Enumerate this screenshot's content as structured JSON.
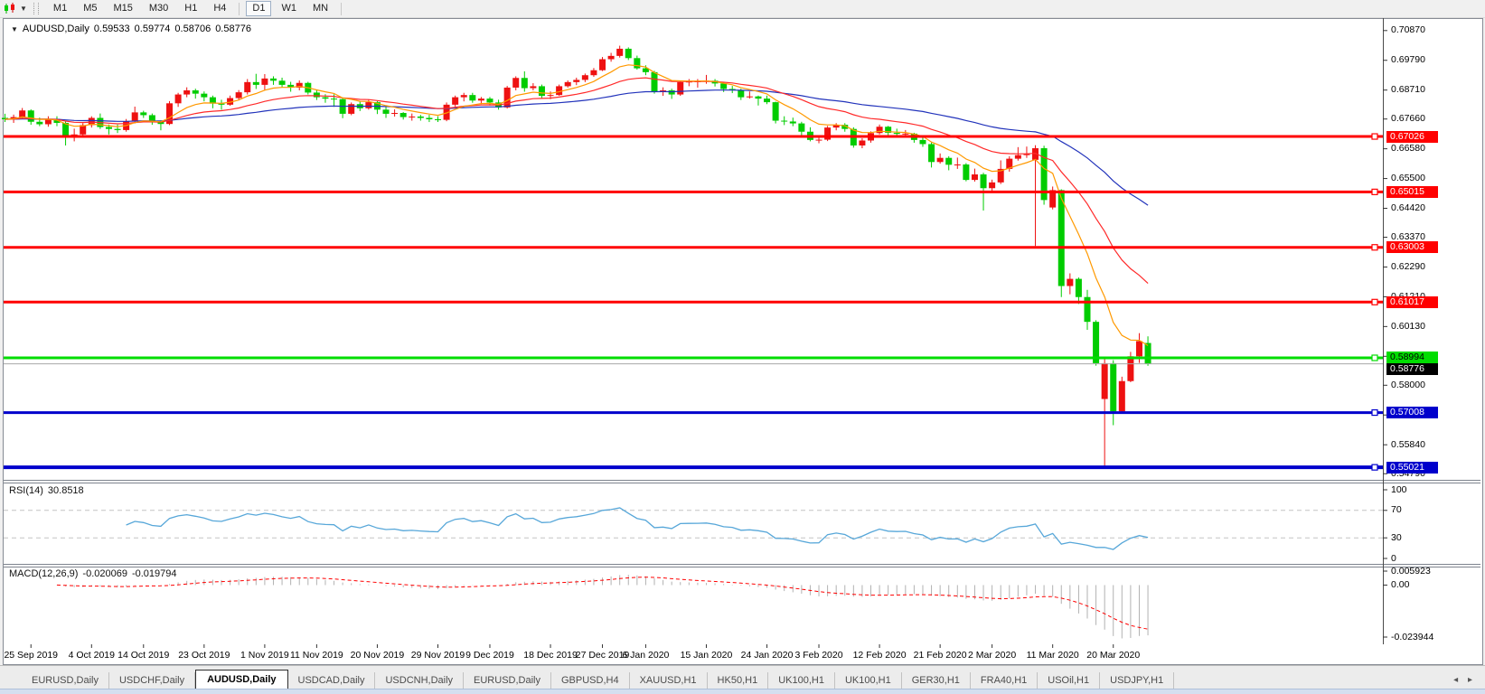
{
  "toolbar": {
    "timeframes": [
      "M1",
      "M5",
      "M15",
      "M30",
      "H1",
      "H4",
      "D1",
      "W1",
      "MN"
    ],
    "active_timeframe": "D1"
  },
  "chart_title": {
    "symbol": "AUDUSD,Daily",
    "open": "0.59533",
    "high": "0.59774",
    "low": "0.58706",
    "close": "0.58776"
  },
  "chart_data": {
    "type": "candlestick",
    "symbol": "AUDUSD",
    "timeframe": "Daily",
    "colors": {
      "bull": "#ee1111",
      "bear": "#00cc00",
      "background": "#ffffff"
    },
    "price_range": {
      "max": 0.7129,
      "min": 0.546
    },
    "price_ticks": [
      0.7087,
      0.6979,
      0.6871,
      0.6766,
      0.6658,
      0.655,
      0.6442,
      0.6337,
      0.6229,
      0.6121,
      0.6013,
      0.5905,
      0.58,
      0.5692,
      0.5584,
      0.5479
    ],
    "horizontal_lines": [
      {
        "value": 0.67026,
        "label": "0.67026",
        "color": "#ff0000",
        "text_color": "#ffffff",
        "weight": 3
      },
      {
        "value": 0.65015,
        "label": "0.65015",
        "color": "#ff0000",
        "text_color": "#ffffff",
        "weight": 3
      },
      {
        "value": 0.63003,
        "label": "0.63003",
        "color": "#ff0000",
        "text_color": "#ffffff",
        "weight": 3
      },
      {
        "value": 0.61017,
        "label": "0.61017",
        "color": "#ff0000",
        "text_color": "#ffffff",
        "weight": 3
      },
      {
        "value": 0.58994,
        "label": "0.58994",
        "color": "#00dd00",
        "text_color": "#000000",
        "weight": 3
      },
      {
        "value": 0.57008,
        "label": "0.57008",
        "color": "#0000cc",
        "text_color": "#ffffff",
        "weight": 3
      },
      {
        "value": 0.55021,
        "label": "0.55021",
        "color": "#0000cc",
        "text_color": "#ffffff",
        "weight": 4
      }
    ],
    "current_price": {
      "value": 0.58776,
      "label": "0.58776",
      "line_color": "#a8a8a8",
      "badge_color": "#000000",
      "text_color": "#ffffff"
    },
    "moving_averages": {
      "fast": {
        "period": 8,
        "color": "#ff9900"
      },
      "medium": {
        "period": 21,
        "color": "#ff2a2a"
      },
      "slow": {
        "period": 55,
        "color": "#2233bb"
      }
    },
    "date_labels": [
      {
        "label": "25 Sep 2019",
        "i": 3
      },
      {
        "label": "4 Oct 2019",
        "i": 10
      },
      {
        "label": "14 Oct 2019",
        "i": 16
      },
      {
        "label": "23 Oct 2019",
        "i": 23
      },
      {
        "label": "1 Nov 2019",
        "i": 30
      },
      {
        "label": "11 Nov 2019",
        "i": 36
      },
      {
        "label": "20 Nov 2019",
        "i": 43
      },
      {
        "label": "29 Nov 2019",
        "i": 50
      },
      {
        "label": "9 Dec 2019",
        "i": 56
      },
      {
        "label": "18 Dec 2019",
        "i": 63
      },
      {
        "label": "27 Dec 2019",
        "i": 69
      },
      {
        "label": "6 Jan 2020",
        "i": 74
      },
      {
        "label": "15 Jan 2020",
        "i": 81
      },
      {
        "label": "24 Jan 2020",
        "i": 88
      },
      {
        "label": "3 Feb 2020",
        "i": 94
      },
      {
        "label": "12 Feb 2020",
        "i": 101
      },
      {
        "label": "21 Feb 2020",
        "i": 108
      },
      {
        "label": "2 Mar 2020",
        "i": 114
      },
      {
        "label": "11 Mar 2020",
        "i": 121
      },
      {
        "label": "20 Mar 2020",
        "i": 128
      }
    ],
    "candles": [
      [
        0.677,
        0.6785,
        0.6755,
        0.6765
      ],
      [
        0.6765,
        0.6782,
        0.6752,
        0.6773
      ],
      [
        0.6773,
        0.6806,
        0.6768,
        0.6797
      ],
      [
        0.6797,
        0.6801,
        0.6745,
        0.6756
      ],
      [
        0.6756,
        0.6771,
        0.674,
        0.6747
      ],
      [
        0.6747,
        0.6776,
        0.6738,
        0.6766
      ],
      [
        0.6766,
        0.6776,
        0.674,
        0.6752
      ],
      [
        0.6752,
        0.6757,
        0.667,
        0.6701
      ],
      [
        0.6701,
        0.6731,
        0.6685,
        0.671
      ],
      [
        0.671,
        0.6751,
        0.67,
        0.6744
      ],
      [
        0.6744,
        0.6776,
        0.6735,
        0.677
      ],
      [
        0.677,
        0.6786,
        0.673,
        0.6737
      ],
      [
        0.6737,
        0.6746,
        0.671,
        0.673
      ],
      [
        0.673,
        0.6746,
        0.6715,
        0.6726
      ],
      [
        0.6726,
        0.6766,
        0.672,
        0.6757
      ],
      [
        0.6757,
        0.6811,
        0.675,
        0.679
      ],
      [
        0.679,
        0.6796,
        0.677,
        0.678
      ],
      [
        0.678,
        0.6786,
        0.6745,
        0.6755
      ],
      [
        0.6755,
        0.6761,
        0.6725,
        0.6748
      ],
      [
        0.6748,
        0.6831,
        0.6744,
        0.6823
      ],
      [
        0.6823,
        0.6861,
        0.681,
        0.6855
      ],
      [
        0.6855,
        0.6881,
        0.6845,
        0.687
      ],
      [
        0.687,
        0.6876,
        0.684,
        0.6858
      ],
      [
        0.6858,
        0.6866,
        0.683,
        0.6845
      ],
      [
        0.6845,
        0.6851,
        0.6805,
        0.6822
      ],
      [
        0.6822,
        0.6836,
        0.68,
        0.6818
      ],
      [
        0.6818,
        0.6851,
        0.6814,
        0.6842
      ],
      [
        0.6842,
        0.6871,
        0.6835,
        0.6863
      ],
      [
        0.6863,
        0.6911,
        0.6855,
        0.69
      ],
      [
        0.69,
        0.693,
        0.6875,
        0.689
      ],
      [
        0.689,
        0.6929,
        0.687,
        0.6913
      ],
      [
        0.6913,
        0.6921,
        0.689,
        0.6905
      ],
      [
        0.6905,
        0.6916,
        0.688,
        0.689
      ],
      [
        0.689,
        0.6901,
        0.6865,
        0.688
      ],
      [
        0.688,
        0.6906,
        0.687,
        0.6897
      ],
      [
        0.6897,
        0.6901,
        0.6855,
        0.6862
      ],
      [
        0.6862,
        0.6871,
        0.6835,
        0.6845
      ],
      [
        0.6845,
        0.6856,
        0.6825,
        0.684
      ],
      [
        0.684,
        0.6856,
        0.681,
        0.6838
      ],
      [
        0.6838,
        0.6841,
        0.6769,
        0.6785
      ],
      [
        0.6785,
        0.6826,
        0.678,
        0.682
      ],
      [
        0.682,
        0.6831,
        0.6795,
        0.6805
      ],
      [
        0.6805,
        0.6836,
        0.68,
        0.6827
      ],
      [
        0.6827,
        0.6831,
        0.6784,
        0.68
      ],
      [
        0.68,
        0.6811,
        0.677,
        0.6785
      ],
      [
        0.6785,
        0.6801,
        0.6775,
        0.6788
      ],
      [
        0.6788,
        0.6791,
        0.6764,
        0.6773
      ],
      [
        0.6773,
        0.6786,
        0.676,
        0.6775
      ],
      [
        0.6775,
        0.6781,
        0.676,
        0.677
      ],
      [
        0.677,
        0.6781,
        0.6755,
        0.6765
      ],
      [
        0.6765,
        0.6776,
        0.6755,
        0.6763
      ],
      [
        0.6763,
        0.6826,
        0.6758,
        0.6818
      ],
      [
        0.6818,
        0.6851,
        0.681,
        0.6845
      ],
      [
        0.6845,
        0.6861,
        0.683,
        0.6853
      ],
      [
        0.6853,
        0.6861,
        0.6825,
        0.6833
      ],
      [
        0.6833,
        0.6846,
        0.682,
        0.684
      ],
      [
        0.684,
        0.6846,
        0.6815,
        0.6826
      ],
      [
        0.6826,
        0.6836,
        0.68,
        0.6808
      ],
      [
        0.6808,
        0.6886,
        0.6804,
        0.688
      ],
      [
        0.688,
        0.6921,
        0.687,
        0.6915
      ],
      [
        0.6915,
        0.6939,
        0.6865,
        0.6878
      ],
      [
        0.6878,
        0.6896,
        0.687,
        0.6885
      ],
      [
        0.6885,
        0.6891,
        0.684,
        0.685
      ],
      [
        0.685,
        0.6866,
        0.6838,
        0.6853
      ],
      [
        0.6853,
        0.6891,
        0.685,
        0.6885
      ],
      [
        0.6885,
        0.6906,
        0.688,
        0.69
      ],
      [
        0.69,
        0.6916,
        0.6889,
        0.6908
      ],
      [
        0.6908,
        0.6931,
        0.69,
        0.6925
      ],
      [
        0.6925,
        0.6951,
        0.6919,
        0.6943
      ],
      [
        0.6943,
        0.6991,
        0.694,
        0.6983
      ],
      [
        0.6983,
        0.7006,
        0.6974,
        0.6995
      ],
      [
        0.6995,
        0.7032,
        0.6989,
        0.7021
      ],
      [
        0.7021,
        0.7026,
        0.698,
        0.6987
      ],
      [
        0.6987,
        0.6996,
        0.6945,
        0.695
      ],
      [
        0.695,
        0.6961,
        0.6925,
        0.6936
      ],
      [
        0.6936,
        0.6941,
        0.6858,
        0.6865
      ],
      [
        0.6865,
        0.6881,
        0.685,
        0.687
      ],
      [
        0.687,
        0.6876,
        0.6839,
        0.6855
      ],
      [
        0.6855,
        0.6906,
        0.685,
        0.69
      ],
      [
        0.69,
        0.6911,
        0.6885,
        0.6902
      ],
      [
        0.6902,
        0.6911,
        0.688,
        0.6903
      ],
      [
        0.6903,
        0.6926,
        0.6894,
        0.6905
      ],
      [
        0.6905,
        0.6911,
        0.6884,
        0.6895
      ],
      [
        0.6895,
        0.6901,
        0.6864,
        0.6875
      ],
      [
        0.6875,
        0.6886,
        0.686,
        0.687
      ],
      [
        0.687,
        0.6876,
        0.6835,
        0.6845
      ],
      [
        0.6845,
        0.6866,
        0.684,
        0.6848
      ],
      [
        0.6848,
        0.6851,
        0.6815,
        0.684
      ],
      [
        0.684,
        0.6851,
        0.682,
        0.6827
      ],
      [
        0.6827,
        0.6829,
        0.675,
        0.676
      ],
      [
        0.676,
        0.6776,
        0.6744,
        0.6757
      ],
      [
        0.6757,
        0.6771,
        0.674,
        0.675
      ],
      [
        0.675,
        0.6756,
        0.67,
        0.672
      ],
      [
        0.672,
        0.6736,
        0.6685,
        0.669
      ],
      [
        0.669,
        0.6706,
        0.6678,
        0.6691
      ],
      [
        0.6691,
        0.6741,
        0.6686,
        0.6735
      ],
      [
        0.6735,
        0.6751,
        0.6725,
        0.6745
      ],
      [
        0.6745,
        0.6751,
        0.672,
        0.673
      ],
      [
        0.673,
        0.6736,
        0.6662,
        0.667
      ],
      [
        0.667,
        0.6696,
        0.666,
        0.6688
      ],
      [
        0.6688,
        0.6721,
        0.668,
        0.6715
      ],
      [
        0.6715,
        0.6746,
        0.671,
        0.6738
      ],
      [
        0.6738,
        0.6741,
        0.6705,
        0.6716
      ],
      [
        0.6716,
        0.6731,
        0.67,
        0.6712
      ],
      [
        0.6712,
        0.6726,
        0.67,
        0.6713
      ],
      [
        0.6713,
        0.6716,
        0.668,
        0.669
      ],
      [
        0.669,
        0.6701,
        0.6665,
        0.6675
      ],
      [
        0.6675,
        0.6681,
        0.659,
        0.661
      ],
      [
        0.661,
        0.6641,
        0.6604,
        0.6625
      ],
      [
        0.6625,
        0.6631,
        0.658,
        0.66
      ],
      [
        0.66,
        0.6626,
        0.6585,
        0.6601
      ],
      [
        0.6601,
        0.6606,
        0.654,
        0.6545
      ],
      [
        0.6545,
        0.6586,
        0.6539,
        0.6565
      ],
      [
        0.6565,
        0.6571,
        0.6434,
        0.6515
      ],
      [
        0.6515,
        0.6546,
        0.6505,
        0.6536
      ],
      [
        0.6536,
        0.6616,
        0.653,
        0.6585
      ],
      [
        0.6585,
        0.6631,
        0.6575,
        0.6622
      ],
      [
        0.6622,
        0.6664,
        0.6615,
        0.6635
      ],
      [
        0.6635,
        0.6666,
        0.6625,
        0.664
      ],
      [
        0.6618,
        0.6671,
        0.6305,
        0.666
      ],
      [
        0.666,
        0.6669,
        0.6455,
        0.6472
      ],
      [
        0.6445,
        0.6521,
        0.6438,
        0.6508
      ],
      [
        0.6508,
        0.6511,
        0.612,
        0.616
      ],
      [
        0.616,
        0.6206,
        0.613,
        0.6186
      ],
      [
        0.6186,
        0.6191,
        0.6095,
        0.612
      ],
      [
        0.612,
        0.6146,
        0.6001,
        0.603
      ],
      [
        0.603,
        0.6036,
        0.5871,
        0.588
      ],
      [
        0.575,
        0.5901,
        0.5506,
        0.588
      ],
      [
        0.588,
        0.5891,
        0.5655,
        0.5705
      ],
      [
        0.5705,
        0.5831,
        0.5701,
        0.5815
      ],
      [
        0.5815,
        0.5921,
        0.5811,
        0.5905
      ],
      [
        0.5905,
        0.5989,
        0.5881,
        0.596
      ],
      [
        0.59533,
        0.59774,
        0.58706,
        0.58776
      ]
    ]
  },
  "rsi": {
    "label": "RSI(14)",
    "value": "30.8518",
    "period": 14,
    "axis_labels": [
      "100",
      "70",
      "30",
      "0"
    ],
    "levels": {
      "upper": 70,
      "lower": 30
    },
    "line_color": "#57a7d9",
    "level_color": "#c4c4c4"
  },
  "macd": {
    "label": "MACD(12,26,9)",
    "macd_value": "-0.020069",
    "signal_value": "-0.019794",
    "params": {
      "fast": 12,
      "slow": 26,
      "signal": 9
    },
    "axis_labels": [
      "0.005923",
      "0.00",
      "-0.023944"
    ],
    "axis_max": 0.005923,
    "axis_min": -0.023944,
    "histogram_color": "#b2b2b2",
    "signal_color": "#ff0000"
  },
  "tabs": {
    "items": [
      {
        "label": "EURUSD,Daily",
        "active": false
      },
      {
        "label": "USDCHF,Daily",
        "active": false
      },
      {
        "label": "AUDUSD,Daily",
        "active": true
      },
      {
        "label": "USDCAD,Daily",
        "active": false
      },
      {
        "label": "USDCNH,Daily",
        "active": false
      },
      {
        "label": "EURUSD,Daily",
        "active": false
      },
      {
        "label": "GBPUSD,H4",
        "active": false
      },
      {
        "label": "XAUUSD,H1",
        "active": false
      },
      {
        "label": "HK50,H1",
        "active": false
      },
      {
        "label": "UK100,H1",
        "active": false
      },
      {
        "label": "UK100,H1",
        "active": false
      },
      {
        "label": "GER30,H1",
        "active": false
      },
      {
        "label": "FRA40,H1",
        "active": false
      },
      {
        "label": "USOil,H1",
        "active": false
      },
      {
        "label": "USDJPY,H1",
        "active": false
      }
    ]
  }
}
